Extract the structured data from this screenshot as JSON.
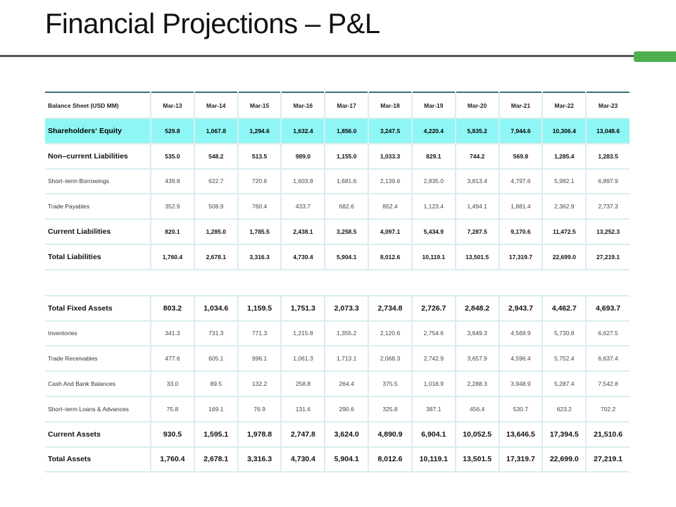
{
  "page": {
    "title": "Financial Projections – P&L"
  },
  "colors": {
    "highlight": "#8ef7f5",
    "accent": "#4caf50",
    "rule": "#555555",
    "grid": "#d8eef0"
  },
  "balance_sheet": {
    "header_label": "Balance Sheet (USD MM)",
    "periods": [
      "Mar-13",
      "Mar-14",
      "Mar-15",
      "Mar-16",
      "Mar-17",
      "Mar-18",
      "Mar-19",
      "Mar-20",
      "Mar-21",
      "Mar-22",
      "Mar-23"
    ],
    "liabilities_rows": [
      {
        "label": "Shareholders‘ Equity",
        "values": [
          "529.8",
          "1,067.8",
          "1,294.6",
          "1,632.4",
          "1,856.0",
          "3,247.5",
          "4,220.4",
          "5,835.2",
          "7,944.6",
          "10,306.4",
          "13,048.6"
        ]
      },
      {
        "label": "Non–current Liabilities",
        "values": [
          "535.0",
          "548.2",
          "513.5",
          "989.0",
          "1,155.0",
          "1,033.3",
          "829.1",
          "744.2",
          "569.8",
          "1,285.4",
          "1,283.5"
        ]
      },
      {
        "label": "Short–term Borrowings",
        "values": [
          "439.8",
          "622.7",
          "720.6",
          "1,603.8",
          "1,681.6",
          "2,139.6",
          "2,835.0",
          "3,813.4",
          "4,797.6",
          "5,982.1",
          "6,897.9"
        ]
      },
      {
        "label": "Trade Payables",
        "values": [
          "352.9",
          "508.9",
          "760.4",
          "433.7",
          "682.6",
          "852.4",
          "1,123.4",
          "1,494.1",
          "1,881.4",
          "2,362.9",
          "2,737.3"
        ]
      },
      {
        "label": "Current Liabilities",
        "values": [
          "820.1",
          "1,285.0",
          "1,785.5",
          "2,438.1",
          "3,258.5",
          "4,097.1",
          "5,434.9",
          "7,287.5",
          "9,170.6",
          "11,472.5",
          "13,252.3"
        ]
      },
      {
        "label": "Total Liabilities",
        "values": [
          "1,760.4",
          "2,678.1",
          "3,316.3",
          "4,730.4",
          "5,904.1",
          "8,012.6",
          "10,119.1",
          "13,501.5",
          "17,319.7",
          "22,699.0",
          "27,219.1"
        ]
      }
    ],
    "assets_rows": [
      {
        "label": "Total Fixed Assets",
        "values": [
          "803.2",
          "1,034.6",
          "1,159.5",
          "1,751.3",
          "2,073.3",
          "2,734.8",
          "2,726.7",
          "2,848.2",
          "2,943.7",
          "4,462.7",
          "4,693.7"
        ]
      },
      {
        "label": "Inventories",
        "values": [
          "341.3",
          "731.3",
          "771.3",
          "1,215.8",
          "1,355.2",
          "2,120.6",
          "2,754.6",
          "3,649.3",
          "4,569.9",
          "5,730.8",
          "6,627.5"
        ]
      },
      {
        "label": "Trade Receivables",
        "values": [
          "477.6",
          "605.1",
          "996.1",
          "1,061.3",
          "1,713.1",
          "2,068.3",
          "2,742.9",
          "3,657.9",
          "4,596.4",
          "5,752.4",
          "6,637.4"
        ]
      },
      {
        "label": "Cash And Bank Balances",
        "values": [
          "33.0",
          "89.5",
          "132.2",
          "258.8",
          "264.4",
          "375.5",
          "1,018.9",
          "2,288.3",
          "3,948.9",
          "5,287.4",
          "7,542.8"
        ]
      },
      {
        "label": "Short–term Loans & Advances",
        "values": [
          "75.8",
          "169.1",
          "76.9",
          "131.6",
          "290.6",
          "325.8",
          "387.1",
          "456.4",
          "530.7",
          "623.2",
          "702.2"
        ]
      },
      {
        "label": "Current Assets",
        "values": [
          "930.5",
          "1,595.1",
          "1,978.8",
          "2,747.8",
          "3,624.0",
          "4,890.9",
          "6,904.1",
          "10,052.5",
          "13,646.5",
          "17,394.5",
          "21,510.6"
        ]
      },
      {
        "label": "Total Assets",
        "values": [
          "1,760.4",
          "2,678.1",
          "3,316.3",
          "4,730.4",
          "5,904.1",
          "8,012.6",
          "10,119.1",
          "13,501.5",
          "17,319.7",
          "22,699.0",
          "27,219.1"
        ]
      }
    ]
  }
}
